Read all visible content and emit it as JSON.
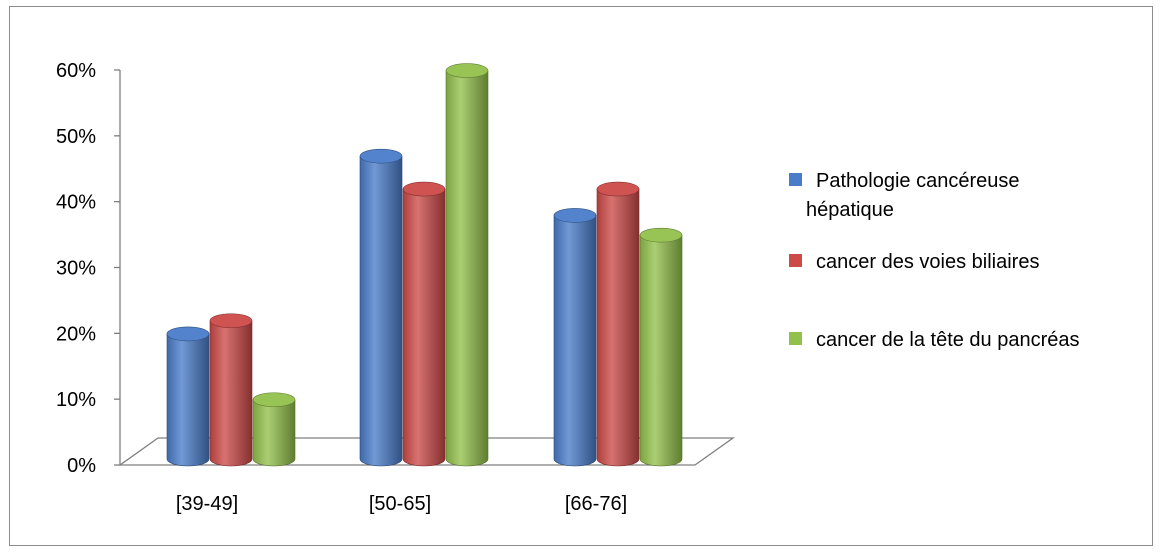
{
  "chart_data": {
    "type": "bar",
    "title": "",
    "xlabel": "",
    "ylabel": "",
    "ylim": [
      0,
      0.6
    ],
    "y_tick_labels": [
      "0%",
      "10%",
      "20%",
      "30%",
      "40%",
      "50%",
      "60%"
    ],
    "categories": [
      "[39-49]",
      "[50-65]",
      "[66-76]"
    ],
    "series": [
      {
        "name": "Pathologie cancéreuse hépatique",
        "values": [
          0.19,
          0.46,
          0.37
        ]
      },
      {
        "name": "cancer des voies biliaires",
        "values": [
          0.21,
          0.41,
          0.41
        ]
      },
      {
        "name": "cancer de la tête du pancréas",
        "values": [
          0.09,
          0.59,
          0.34
        ]
      }
    ],
    "legend_placement": "right",
    "legend_lines": [
      [
        "Pathologie cancéreuse",
        "hépatique"
      ],
      [
        "cancer des voies biliaires"
      ],
      [
        "cancer de la tête du pancréas"
      ]
    ],
    "colors": [
      "#4a7cc9",
      "#cc4a48",
      "#93c04c"
    ],
    "grid": false,
    "style": "3d-cylinder"
  }
}
